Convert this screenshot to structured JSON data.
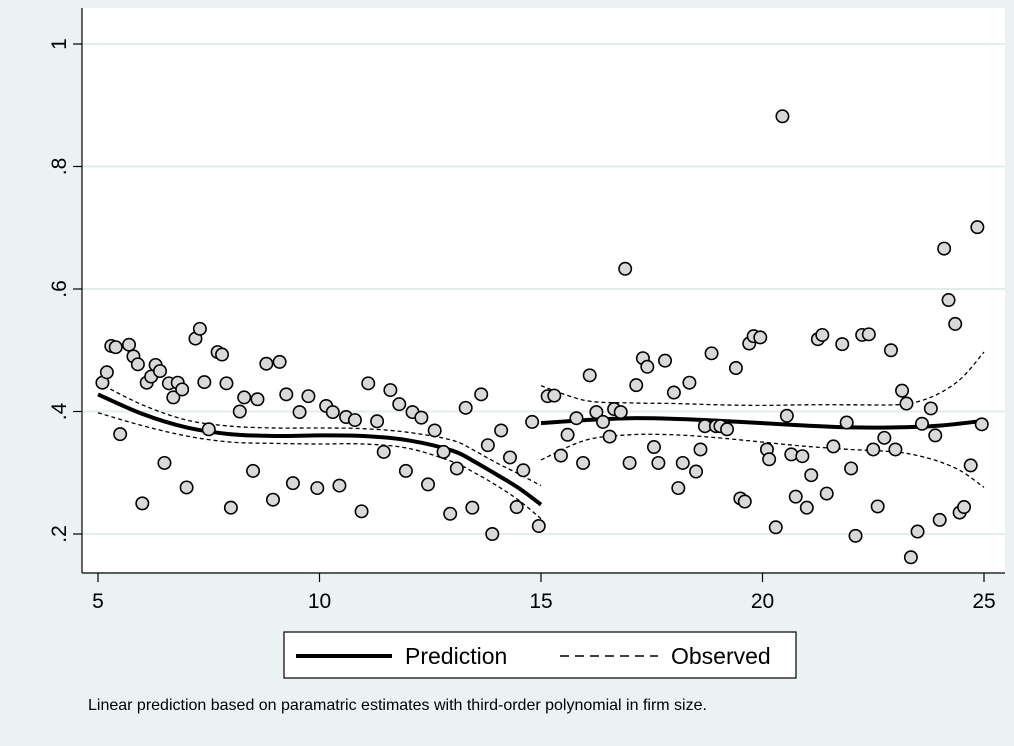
{
  "chart_data": {
    "type": "scatter",
    "title": "",
    "xlabel": "",
    "ylabel": "",
    "xlim": [
      5,
      25
    ],
    "ylim": [
      0.2,
      1.0
    ],
    "x_ticks": [
      5,
      10,
      15,
      20,
      25
    ],
    "x_tick_labels": [
      "5",
      "10",
      "15",
      "20",
      "25"
    ],
    "y_ticks": [
      0.2,
      0.4,
      0.6,
      0.8,
      1.0
    ],
    "y_tick_labels": [
      ".2",
      ".4",
      ".6",
      ".8",
      "1"
    ],
    "grid": "horizontal",
    "legend_position": "bottom",
    "note": "Linear prediction based on paramatric estimates with third-order polynomial in firm size.",
    "series": [
      {
        "name": "Observed",
        "kind": "points",
        "marker": "hollow-circle",
        "points": [
          [
            5.1,
            0.447
          ],
          [
            5.2,
            0.464
          ],
          [
            5.3,
            0.507
          ],
          [
            5.4,
            0.505
          ],
          [
            5.5,
            0.363
          ],
          [
            5.7,
            0.509
          ],
          [
            5.8,
            0.49
          ],
          [
            5.9,
            0.477
          ],
          [
            6.0,
            0.25
          ],
          [
            6.1,
            0.447
          ],
          [
            6.2,
            0.457
          ],
          [
            6.3,
            0.476
          ],
          [
            6.4,
            0.466
          ],
          [
            6.5,
            0.316
          ],
          [
            6.6,
            0.446
          ],
          [
            6.7,
            0.423
          ],
          [
            6.8,
            0.447
          ],
          [
            6.9,
            0.436
          ],
          [
            7.0,
            0.276
          ],
          [
            7.2,
            0.519
          ],
          [
            7.3,
            0.535
          ],
          [
            7.4,
            0.448
          ],
          [
            7.5,
            0.371
          ],
          [
            7.7,
            0.497
          ],
          [
            7.8,
            0.493
          ],
          [
            7.9,
            0.446
          ],
          [
            8.0,
            0.243
          ],
          [
            8.2,
            0.4
          ],
          [
            8.3,
            0.423
          ],
          [
            8.5,
            0.303
          ],
          [
            8.6,
            0.42
          ],
          [
            8.8,
            0.478
          ],
          [
            8.95,
            0.256
          ],
          [
            9.1,
            0.481
          ],
          [
            9.25,
            0.428
          ],
          [
            9.4,
            0.283
          ],
          [
            9.55,
            0.399
          ],
          [
            9.75,
            0.425
          ],
          [
            9.95,
            0.275
          ],
          [
            10.15,
            0.409
          ],
          [
            10.3,
            0.399
          ],
          [
            10.45,
            0.279
          ],
          [
            10.6,
            0.391
          ],
          [
            10.8,
            0.386
          ],
          [
            10.95,
            0.237
          ],
          [
            11.1,
            0.446
          ],
          [
            11.3,
            0.384
          ],
          [
            11.45,
            0.334
          ],
          [
            11.6,
            0.435
          ],
          [
            11.8,
            0.412
          ],
          [
            11.95,
            0.303
          ],
          [
            12.1,
            0.399
          ],
          [
            12.3,
            0.39
          ],
          [
            12.45,
            0.281
          ],
          [
            12.6,
            0.369
          ],
          [
            12.8,
            0.334
          ],
          [
            12.95,
            0.233
          ],
          [
            13.1,
            0.307
          ],
          [
            13.3,
            0.406
          ],
          [
            13.45,
            0.243
          ],
          [
            13.65,
            0.428
          ],
          [
            13.8,
            0.345
          ],
          [
            13.9,
            0.2
          ],
          [
            14.1,
            0.369
          ],
          [
            14.3,
            0.325
          ],
          [
            14.45,
            0.244
          ],
          [
            14.6,
            0.304
          ],
          [
            14.8,
            0.383
          ],
          [
            14.95,
            0.213
          ],
          [
            15.15,
            0.425
          ],
          [
            15.3,
            0.426
          ],
          [
            15.45,
            0.328
          ],
          [
            15.6,
            0.362
          ],
          [
            15.8,
            0.389
          ],
          [
            15.95,
            0.316
          ],
          [
            16.1,
            0.459
          ],
          [
            16.25,
            0.399
          ],
          [
            16.4,
            0.383
          ],
          [
            16.55,
            0.359
          ],
          [
            16.65,
            0.404
          ],
          [
            16.8,
            0.399
          ],
          [
            16.9,
            0.633
          ],
          [
            17.0,
            0.316
          ],
          [
            17.15,
            0.443
          ],
          [
            17.3,
            0.487
          ],
          [
            17.4,
            0.473
          ],
          [
            17.55,
            0.342
          ],
          [
            17.65,
            0.316
          ],
          [
            17.8,
            0.483
          ],
          [
            18.0,
            0.431
          ],
          [
            18.1,
            0.275
          ],
          [
            18.2,
            0.316
          ],
          [
            18.35,
            0.447
          ],
          [
            18.5,
            0.302
          ],
          [
            18.6,
            0.338
          ],
          [
            18.7,
            0.376
          ],
          [
            18.85,
            0.495
          ],
          [
            18.95,
            0.376
          ],
          [
            19.05,
            0.376
          ],
          [
            19.2,
            0.371
          ],
          [
            19.4,
            0.471
          ],
          [
            19.5,
            0.258
          ],
          [
            19.6,
            0.253
          ],
          [
            19.7,
            0.511
          ],
          [
            19.8,
            0.523
          ],
          [
            19.95,
            0.521
          ],
          [
            20.1,
            0.338
          ],
          [
            20.15,
            0.322
          ],
          [
            20.3,
            0.211
          ],
          [
            20.45,
            0.882
          ],
          [
            20.55,
            0.393
          ],
          [
            20.65,
            0.33
          ],
          [
            20.75,
            0.261
          ],
          [
            20.9,
            0.327
          ],
          [
            21.0,
            0.243
          ],
          [
            21.1,
            0.296
          ],
          [
            21.25,
            0.518
          ],
          [
            21.35,
            0.525
          ],
          [
            21.45,
            0.266
          ],
          [
            21.6,
            0.343
          ],
          [
            21.8,
            0.51
          ],
          [
            21.9,
            0.382
          ],
          [
            22.0,
            0.307
          ],
          [
            22.1,
            0.197
          ],
          [
            22.25,
            0.525
          ],
          [
            22.4,
            0.526
          ],
          [
            22.5,
            0.338
          ],
          [
            22.6,
            0.245
          ],
          [
            22.75,
            0.357
          ],
          [
            22.9,
            0.5
          ],
          [
            23.0,
            0.338
          ],
          [
            23.15,
            0.434
          ],
          [
            23.25,
            0.413
          ],
          [
            23.35,
            0.162
          ],
          [
            23.5,
            0.204
          ],
          [
            23.6,
            0.38
          ],
          [
            23.8,
            0.405
          ],
          [
            23.9,
            0.361
          ],
          [
            24.0,
            0.223
          ],
          [
            24.1,
            0.666
          ],
          [
            24.2,
            0.582
          ],
          [
            24.35,
            0.543
          ],
          [
            24.45,
            0.235
          ],
          [
            24.55,
            0.244
          ],
          [
            24.7,
            0.312
          ],
          [
            24.85,
            0.701
          ],
          [
            24.95,
            0.379
          ]
        ]
      },
      {
        "name": "Prediction",
        "kind": "fit-line",
        "segment": "x 5-15",
        "points": [
          [
            5.0,
            0.428
          ],
          [
            6.0,
            0.396
          ],
          [
            7.0,
            0.374
          ],
          [
            8.0,
            0.363
          ],
          [
            9.0,
            0.36
          ],
          [
            10.0,
            0.361
          ],
          [
            11.0,
            0.36
          ],
          [
            12.0,
            0.353
          ],
          [
            13.0,
            0.336
          ],
          [
            13.5,
            0.318
          ],
          [
            14.0,
            0.297
          ],
          [
            14.5,
            0.275
          ],
          [
            15.0,
            0.248
          ]
        ]
      },
      {
        "name": "Prediction",
        "kind": "fit-line",
        "segment": "x 15-25",
        "points": [
          [
            15.0,
            0.381
          ],
          [
            16.0,
            0.386
          ],
          [
            17.0,
            0.389
          ],
          [
            18.0,
            0.388
          ],
          [
            19.0,
            0.385
          ],
          [
            20.0,
            0.381
          ],
          [
            21.0,
            0.377
          ],
          [
            22.0,
            0.374
          ],
          [
            23.0,
            0.374
          ],
          [
            24.0,
            0.377
          ],
          [
            25.0,
            0.385
          ]
        ]
      },
      {
        "name": "Observed",
        "kind": "band-upper",
        "segment": "x 5-15",
        "points": [
          [
            5.0,
            0.447
          ],
          [
            6.0,
            0.411
          ],
          [
            7.0,
            0.386
          ],
          [
            8.0,
            0.376
          ],
          [
            9.0,
            0.373
          ],
          [
            10.0,
            0.373
          ],
          [
            11.0,
            0.372
          ],
          [
            12.0,
            0.366
          ],
          [
            13.0,
            0.353
          ],
          [
            13.5,
            0.336
          ],
          [
            14.0,
            0.316
          ],
          [
            14.5,
            0.298
          ],
          [
            15.0,
            0.279
          ]
        ]
      },
      {
        "name": "Observed",
        "kind": "band-lower",
        "segment": "x 5-15",
        "points": [
          [
            5.0,
            0.398
          ],
          [
            6.0,
            0.377
          ],
          [
            7.0,
            0.36
          ],
          [
            8.0,
            0.35
          ],
          [
            9.0,
            0.348
          ],
          [
            10.0,
            0.347
          ],
          [
            11.0,
            0.347
          ],
          [
            12.0,
            0.34
          ],
          [
            13.0,
            0.318
          ],
          [
            13.5,
            0.3
          ],
          [
            14.0,
            0.279
          ],
          [
            14.5,
            0.255
          ],
          [
            15.0,
            0.225
          ]
        ]
      },
      {
        "name": "Observed",
        "kind": "band-upper",
        "segment": "x 15-25",
        "points": [
          [
            15.0,
            0.442
          ],
          [
            16.0,
            0.418
          ],
          [
            17.0,
            0.414
          ],
          [
            18.0,
            0.413
          ],
          [
            19.0,
            0.411
          ],
          [
            20.0,
            0.41
          ],
          [
            21.0,
            0.411
          ],
          [
            22.0,
            0.411
          ],
          [
            23.0,
            0.411
          ],
          [
            23.5,
            0.416
          ],
          [
            24.0,
            0.43
          ],
          [
            24.5,
            0.455
          ],
          [
            25.0,
            0.497
          ]
        ]
      },
      {
        "name": "Observed",
        "kind": "band-lower",
        "segment": "x 15-25",
        "points": [
          [
            15.0,
            0.321
          ],
          [
            16.0,
            0.353
          ],
          [
            17.0,
            0.362
          ],
          [
            18.0,
            0.362
          ],
          [
            19.0,
            0.357
          ],
          [
            20.0,
            0.35
          ],
          [
            21.0,
            0.343
          ],
          [
            22.0,
            0.338
          ],
          [
            23.0,
            0.334
          ],
          [
            23.5,
            0.328
          ],
          [
            24.0,
            0.318
          ],
          [
            24.5,
            0.302
          ],
          [
            25.0,
            0.276
          ]
        ]
      }
    ]
  },
  "legend": {
    "items": [
      {
        "label": "Prediction",
        "style": "solid"
      },
      {
        "label": "Observed",
        "style": "dashed"
      }
    ]
  },
  "colors": {
    "background": "#eaf2f3",
    "plot_background": "#ffffff",
    "grid": "#e4ebec",
    "ink": "#000000",
    "marker_fill": "#d9d9d9"
  }
}
